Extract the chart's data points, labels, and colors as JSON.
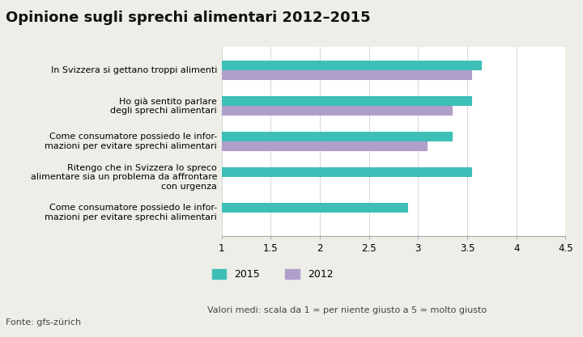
{
  "title": "Opinione sugli sprechi alimentari 2012–2015",
  "categories": [
    "In Svizzera si gettano troppi alimenti",
    "Ho già sentito parlare\ndegli sprechi alimentari",
    "Come consumatore possiedo le infor-\nmazioni per evitare sprechi alimentari",
    "Ritengo che in Svizzera lo spreco\nalimentare sia un problema da affrontare\ncon urgenza",
    "Come consumatore possiedo le infor-\nmazioni per evitare sprechi alimentari"
  ],
  "values_2015": [
    3.65,
    3.55,
    3.35,
    3.55,
    2.9
  ],
  "values_2012": [
    3.55,
    3.35,
    3.1,
    null,
    null
  ],
  "color_2015": "#3dbfb8",
  "color_2012": "#b09fca",
  "xlim": [
    1,
    4.5
  ],
  "xticks": [
    1,
    1.5,
    2,
    2.5,
    3,
    3.5,
    4,
    4.5
  ],
  "legend_label_2015": "2015",
  "legend_label_2012": "2012",
  "footnote": "Valori medi: scala da 1 = per niente giusto a 5 = molto giusto",
  "source": "Fonte: gfs-zürich",
  "background_color": "#eeeee8",
  "plot_bg_color": "#ffffff",
  "bar_height": 0.28,
  "title_fontsize": 13,
  "axis_fontsize": 8.5,
  "label_fontsize": 8.0,
  "legend_fontsize": 9,
  "footnote_fontsize": 8,
  "source_fontsize": 8
}
